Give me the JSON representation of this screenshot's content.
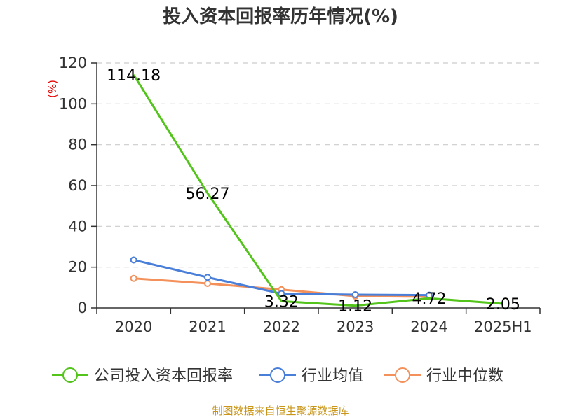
{
  "chart_data": {
    "type": "line",
    "title": "投入资本回报率历年情况(%)",
    "ylabel": "(%)",
    "xlabel": "",
    "categories": [
      "2020",
      "2021",
      "2022",
      "2023",
      "2024",
      "2025H1"
    ],
    "ylim": [
      0,
      120
    ],
    "yticks": [
      0,
      20,
      40,
      60,
      80,
      100,
      120
    ],
    "grid": true,
    "legend_position": "bottom",
    "series": [
      {
        "name": "公司投入资本回报率",
        "color": "#52c41a",
        "values": [
          114.18,
          56.27,
          3.32,
          1.12,
          4.72,
          2.05
        ],
        "labels": [
          "114.18",
          "56.27",
          "3.32",
          "1.12",
          "4.72",
          "2.05"
        ]
      },
      {
        "name": "行业均值",
        "color": "#4a7fd9",
        "values": [
          23.5,
          15.0,
          7.0,
          6.5,
          6.3,
          null
        ]
      },
      {
        "name": "行业中位数",
        "color": "#f4905a",
        "values": [
          14.5,
          12.0,
          9.0,
          5.8,
          5.5,
          null
        ]
      }
    ],
    "source": "制图数据来自恒生聚源数据库"
  }
}
